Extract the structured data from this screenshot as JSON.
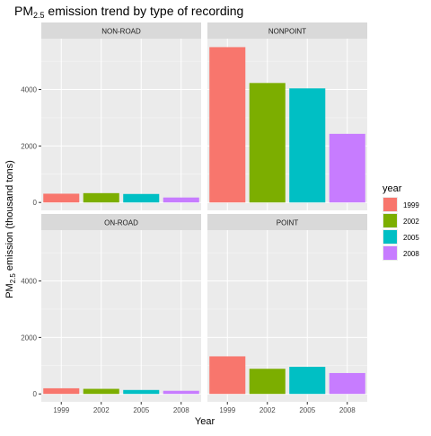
{
  "chart_data": {
    "type": "bar",
    "title_main": "PM",
    "title_sub": "2.5",
    "title_rest": " emission trend by type of recording",
    "xlabel": "Year",
    "ylabel_main": "PM",
    "ylabel_sub": "2.5",
    "ylabel_rest": " emission (thousand tons)",
    "categories": [
      "1999",
      "2002",
      "2005",
      "2008"
    ],
    "yticks": [
      0,
      2000,
      4000
    ],
    "ylim": [
      -280,
      5800
    ],
    "facets": [
      {
        "name": "NON-ROAD",
        "values": [
          310,
          330,
          300,
          175
        ]
      },
      {
        "name": "NONPOINT",
        "values": [
          5500,
          4230,
          4040,
          2430
        ]
      },
      {
        "name": "ON-ROAD",
        "values": [
          200,
          180,
          140,
          110
        ]
      },
      {
        "name": "POINT",
        "values": [
          1330,
          890,
          960,
          740
        ]
      }
    ],
    "legend": {
      "title": "year",
      "placement": "right",
      "items": [
        {
          "label": "1999",
          "color": "#F8766D"
        },
        {
          "label": "2002",
          "color": "#7CAE00"
        },
        {
          "label": "2005",
          "color": "#00BFC4"
        },
        {
          "label": "2008",
          "color": "#C77CFF"
        }
      ]
    },
    "grid": true,
    "colors": {
      "panel_bg": "#EBEBEB",
      "strip_bg": "#D9D9D9",
      "grid": "#FFFFFF"
    }
  }
}
